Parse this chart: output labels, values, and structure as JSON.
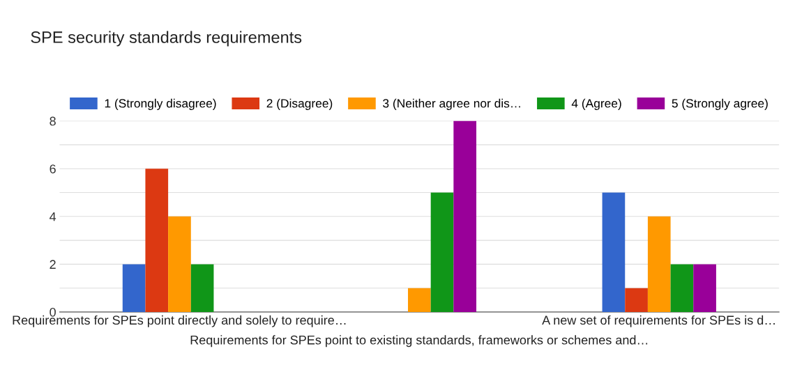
{
  "chart_data": {
    "type": "bar",
    "title": "SPE security standards requirements",
    "categories": [
      "Requirements for SPEs point directly and solely to require…",
      "Requirements for SPEs point to existing standards, frameworks or schemes and…",
      "A new set of requirements for SPEs is d…"
    ],
    "series": [
      {
        "name": "1 (Strongly disagree)",
        "color": "#3366cc",
        "values": [
          2,
          0,
          5
        ]
      },
      {
        "name": "2 (Disagree)",
        "color": "#dc3912",
        "values": [
          6,
          0,
          1
        ]
      },
      {
        "name": "3 (Neither agree nor dis…",
        "color": "#ff9900",
        "values": [
          4,
          1,
          4
        ]
      },
      {
        "name": "4 (Agree)",
        "color": "#109618",
        "values": [
          2,
          5,
          2
        ]
      },
      {
        "name": "5 (Strongly agree)",
        "color": "#990099",
        "values": [
          0,
          8,
          2
        ]
      }
    ],
    "ylim": [
      0,
      8
    ],
    "yticks": [
      0,
      {
        "value": 1,
        "label": null
      },
      2,
      {
        "value": 3,
        "label": null
      },
      4,
      {
        "value": 5,
        "label": null
      },
      6,
      {
        "value": 7,
        "label": null
      },
      8
    ],
    "grid": "y",
    "legend": "top"
  }
}
